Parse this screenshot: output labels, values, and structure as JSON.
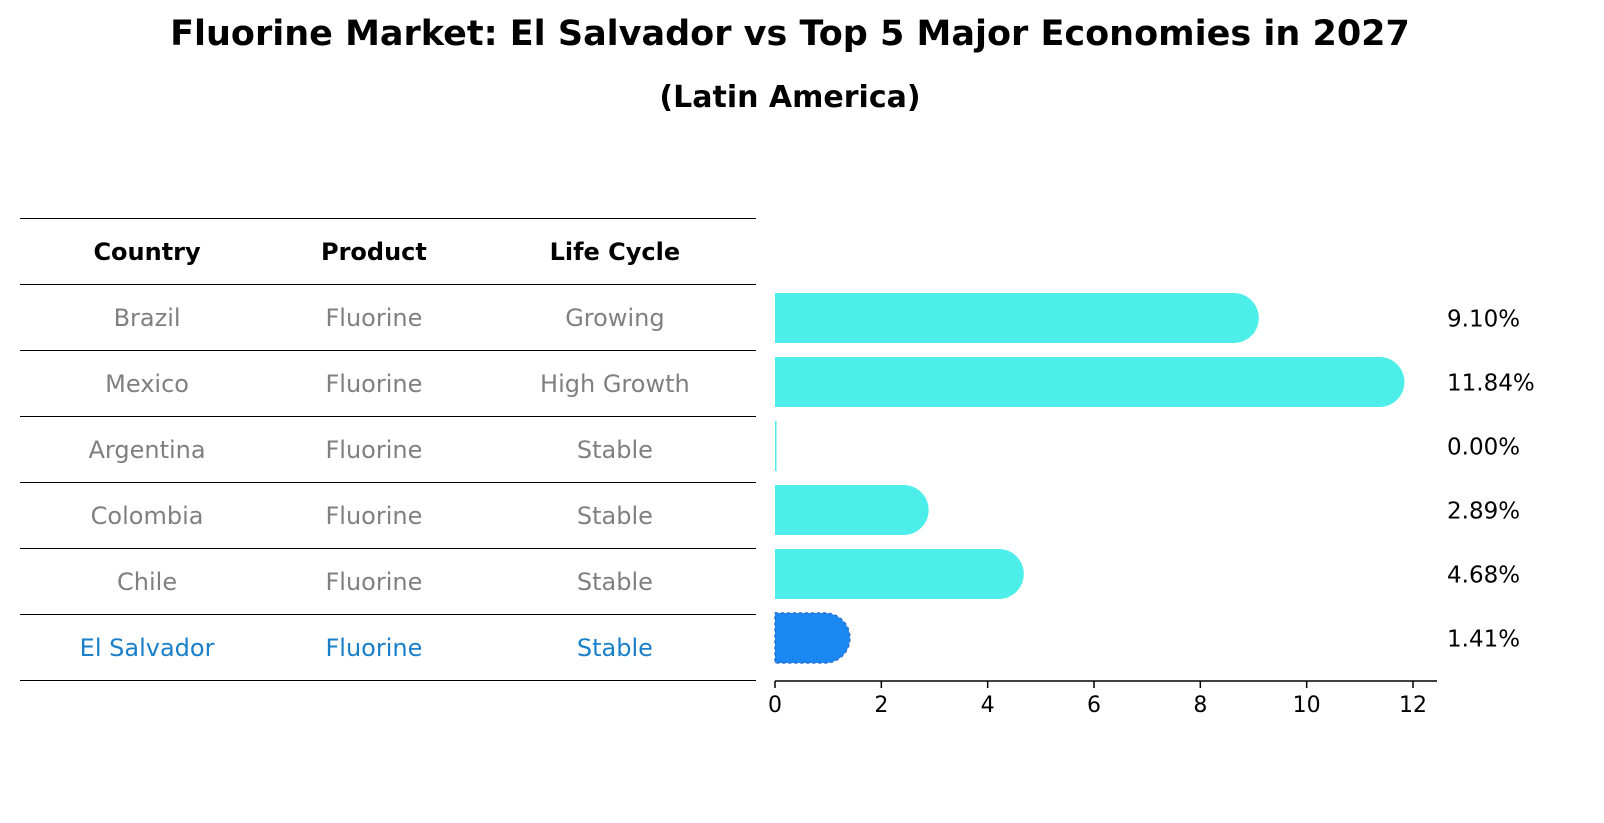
{
  "title": "Fluorine Market: El Salvador vs Top 5 Major Economies in 2027",
  "subtitle": "(Latin America)",
  "table": {
    "headers": [
      "Country",
      "Product",
      "Life Cycle"
    ],
    "rows": [
      [
        "Brazil",
        "Fluorine",
        "Growing"
      ],
      [
        "Mexico",
        "Fluorine",
        "High Growth"
      ],
      [
        "Argentina",
        "Fluorine",
        "Stable"
      ],
      [
        "Colombia",
        "Fluorine",
        "Stable"
      ],
      [
        "Chile",
        "Fluorine",
        "Stable"
      ],
      [
        "El Salvador",
        "Fluorine",
        "Stable"
      ]
    ],
    "highlight_row": 5
  },
  "colors": {
    "bar": "#4deeea",
    "highlight_bar": "#1b87f2",
    "highlight_text": "#1a7fc9",
    "muted_text": "#808080"
  },
  "chart_data": {
    "type": "bar",
    "orientation": "horizontal",
    "categories": [
      "Brazil",
      "Mexico",
      "Argentina",
      "Colombia",
      "Chile",
      "El Salvador"
    ],
    "values": [
      9.1,
      11.84,
      0.0,
      2.89,
      4.68,
      1.41
    ],
    "value_labels": [
      "9.10%",
      "11.84%",
      "0.00%",
      "2.89%",
      "4.68%",
      "1.41%"
    ],
    "highlight_index": 5,
    "xlim": [
      0,
      12.5
    ],
    "xticks": [
      0,
      2,
      4,
      6,
      8,
      10,
      12
    ],
    "grid": false
  }
}
